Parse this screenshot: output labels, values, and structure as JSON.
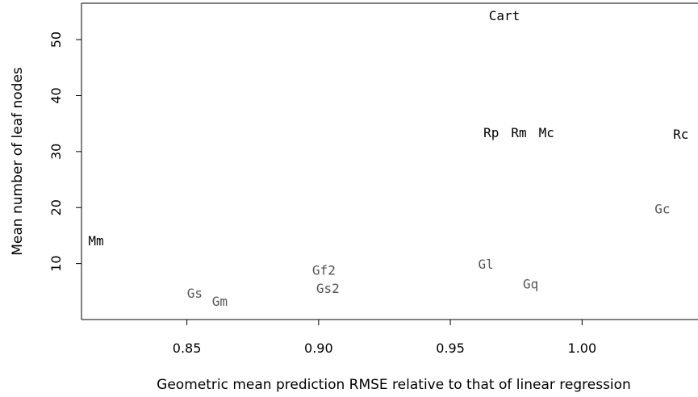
{
  "chart_data": {
    "type": "scatter",
    "title": "",
    "xlabel": "Geometric mean prediction RMSE relative to that of linear regression",
    "ylabel": "Mean number of leaf nodes",
    "xlim": [
      0.81,
      1.044
    ],
    "ylim": [
      0,
      56.5
    ],
    "x_ticks": [
      0.85,
      0.9,
      0.95,
      1.0
    ],
    "x_tick_labels": [
      "0.85",
      "0.90",
      "0.95",
      "1.00"
    ],
    "y_ticks": [
      10,
      20,
      30,
      40,
      50
    ],
    "y_tick_labels": [
      "10",
      "20",
      "30",
      "40",
      "50"
    ],
    "grid": false,
    "legend": "none",
    "colors": {
      "black": "#000000",
      "gray": "#555555"
    },
    "points": [
      {
        "label": "Cart",
        "x": 0.9705,
        "y": 54.2,
        "color": "black"
      },
      {
        "label": "Rp",
        "x": 0.9655,
        "y": 33.3,
        "color": "black"
      },
      {
        "label": "Rm",
        "x": 0.976,
        "y": 33.3,
        "color": "black"
      },
      {
        "label": "Mc",
        "x": 0.9865,
        "y": 33.3,
        "color": "black"
      },
      {
        "label": "Rc",
        "x": 1.0375,
        "y": 33.0,
        "color": "black"
      },
      {
        "label": "Gc",
        "x": 1.0305,
        "y": 19.7,
        "color": "gray"
      },
      {
        "label": "Mm",
        "x": 0.8155,
        "y": 14.0,
        "color": "black"
      },
      {
        "label": "Gf2",
        "x": 0.902,
        "y": 8.7,
        "color": "gray"
      },
      {
        "label": "Gs2",
        "x": 0.9035,
        "y": 5.5,
        "color": "gray"
      },
      {
        "label": "Gl",
        "x": 0.9635,
        "y": 9.8,
        "color": "gray"
      },
      {
        "label": "Gq",
        "x": 0.9805,
        "y": 6.3,
        "color": "gray"
      },
      {
        "label": "Gs",
        "x": 0.853,
        "y": 4.6,
        "color": "gray"
      },
      {
        "label": "Gm",
        "x": 0.8625,
        "y": 3.2,
        "color": "gray"
      }
    ]
  }
}
